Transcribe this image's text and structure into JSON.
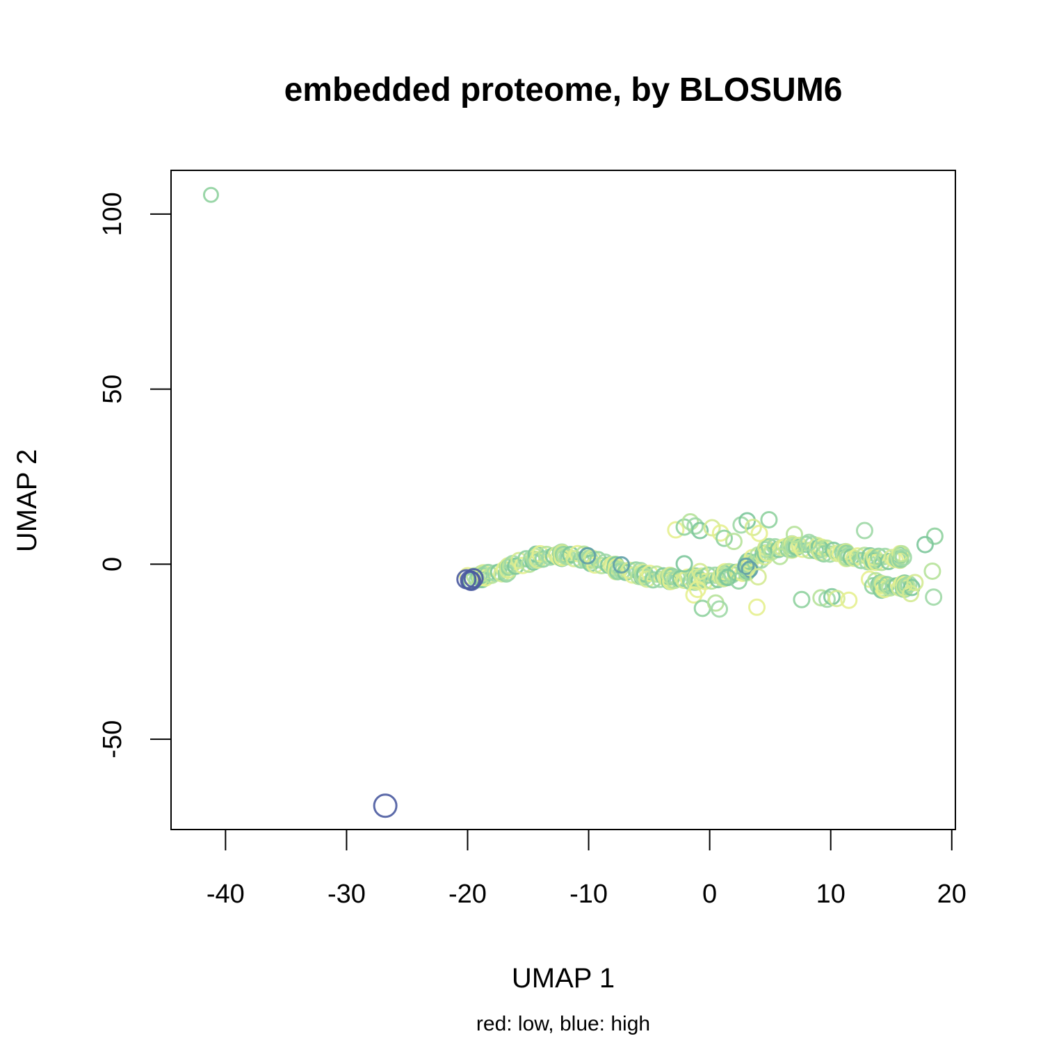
{
  "chart_data": {
    "type": "scatter",
    "title": "embedded proteome, by BLOSUM6",
    "xlabel": "UMAP 1",
    "ylabel": "UMAP 2",
    "subtitle": "red: low, blue: high",
    "xlim": [
      -44.5,
      20.3
    ],
    "ylim": [
      -75.8,
      112.5
    ],
    "xticks": [
      -40,
      -30,
      -20,
      -10,
      0,
      10,
      20
    ],
    "yticks": [
      -50,
      0,
      50,
      100
    ],
    "x_tick_labels": [
      "-40",
      "-30",
      "-20",
      "-10",
      "0",
      "10",
      "20"
    ],
    "y_tick_labels": [
      "-50",
      "0",
      "50",
      "100"
    ],
    "grid": false,
    "marker": "open-circle",
    "colors": {
      "low": "#e6f08f",
      "mid": "#8fd19e",
      "high": "#4a5aa0"
    },
    "outliers": [
      {
        "x": -41.2,
        "y": 105.5,
        "color": "#8fd19e",
        "r": 10
      },
      {
        "x": -26.8,
        "y": -69.0,
        "color": "#4a5aa0",
        "r": 16
      }
    ],
    "trajectory": [
      {
        "x": -20.0,
        "y": -4.2
      },
      {
        "x": -18.5,
        "y": -3.5
      },
      {
        "x": -17.0,
        "y": -1.8
      },
      {
        "x": -15.5,
        "y": 0.5
      },
      {
        "x": -14.0,
        "y": 2.0
      },
      {
        "x": -12.5,
        "y": 2.6
      },
      {
        "x": -11.0,
        "y": 2.2
      },
      {
        "x": -9.5,
        "y": 1.0
      },
      {
        "x": -8.0,
        "y": -0.8
      },
      {
        "x": -6.5,
        "y": -2.4
      },
      {
        "x": -5.0,
        "y": -3.4
      },
      {
        "x": -3.5,
        "y": -4.0
      },
      {
        "x": -2.0,
        "y": -4.3
      },
      {
        "x": -0.5,
        "y": -4.2
      },
      {
        "x": 1.0,
        "y": -3.6
      },
      {
        "x": 2.5,
        "y": -2.2
      },
      {
        "x": 3.5,
        "y": 0.5
      },
      {
        "x": 4.5,
        "y": 3.5
      },
      {
        "x": 6.0,
        "y": 4.8
      },
      {
        "x": 7.5,
        "y": 5.0
      },
      {
        "x": 9.0,
        "y": 4.5
      },
      {
        "x": 10.5,
        "y": 3.2
      },
      {
        "x": 12.0,
        "y": 2.0
      },
      {
        "x": 13.5,
        "y": 1.2
      },
      {
        "x": 15.0,
        "y": 1.5
      },
      {
        "x": 16.5,
        "y": 2.5
      }
    ],
    "lower_branch": [
      {
        "x": 13.2,
        "y": -5.2
      },
      {
        "x": 14.5,
        "y": -6.5
      },
      {
        "x": 15.8,
        "y": -6.3
      },
      {
        "x": 17.2,
        "y": -6.0
      }
    ],
    "scatter_points": [
      {
        "x": -2.8,
        "y": 9.8
      },
      {
        "x": -2.1,
        "y": 10.6
      },
      {
        "x": -1.6,
        "y": 12.1
      },
      {
        "x": -1.2,
        "y": 10.9
      },
      {
        "x": -0.8,
        "y": 9.6
      },
      {
        "x": 0.2,
        "y": 10.4
      },
      {
        "x": 0.9,
        "y": 8.9
      },
      {
        "x": 1.2,
        "y": 7.4
      },
      {
        "x": 2.0,
        "y": 6.5
      },
      {
        "x": 2.6,
        "y": 11.2
      },
      {
        "x": 3.1,
        "y": 12.4
      },
      {
        "x": 3.6,
        "y": 10.5
      },
      {
        "x": 4.1,
        "y": 8.8
      },
      {
        "x": 4.9,
        "y": 12.7
      },
      {
        "x": 7.0,
        "y": 8.5
      },
      {
        "x": 12.8,
        "y": 9.6
      },
      {
        "x": -2.1,
        "y": 0.1
      },
      {
        "x": -0.8,
        "y": -2.1
      },
      {
        "x": -1.3,
        "y": -8.8
      },
      {
        "x": -0.6,
        "y": -12.6
      },
      {
        "x": 0.5,
        "y": -11.1
      },
      {
        "x": 0.8,
        "y": -12.8
      },
      {
        "x": 1.5,
        "y": -3.8
      },
      {
        "x": 4.0,
        "y": -3.6
      },
      {
        "x": 3.9,
        "y": -12.3
      },
      {
        "x": 7.6,
        "y": -10.1
      },
      {
        "x": 9.2,
        "y": -9.6
      },
      {
        "x": 9.7,
        "y": -10.0
      },
      {
        "x": 10.1,
        "y": -9.3
      },
      {
        "x": 10.5,
        "y": -9.8
      },
      {
        "x": 11.5,
        "y": -10.3
      },
      {
        "x": 18.6,
        "y": 8.0
      },
      {
        "x": 18.4,
        "y": -2.0
      },
      {
        "x": 18.5,
        "y": -9.4
      },
      {
        "x": 17.8,
        "y": 5.6
      },
      {
        "x": 16.6,
        "y": -8.4
      },
      {
        "x": -1.0,
        "y": -7.2
      },
      {
        "x": 2.4,
        "y": -4.8
      },
      {
        "x": 5.8,
        "y": 2.2
      },
      {
        "x": 8.2,
        "y": 6.2
      }
    ]
  }
}
